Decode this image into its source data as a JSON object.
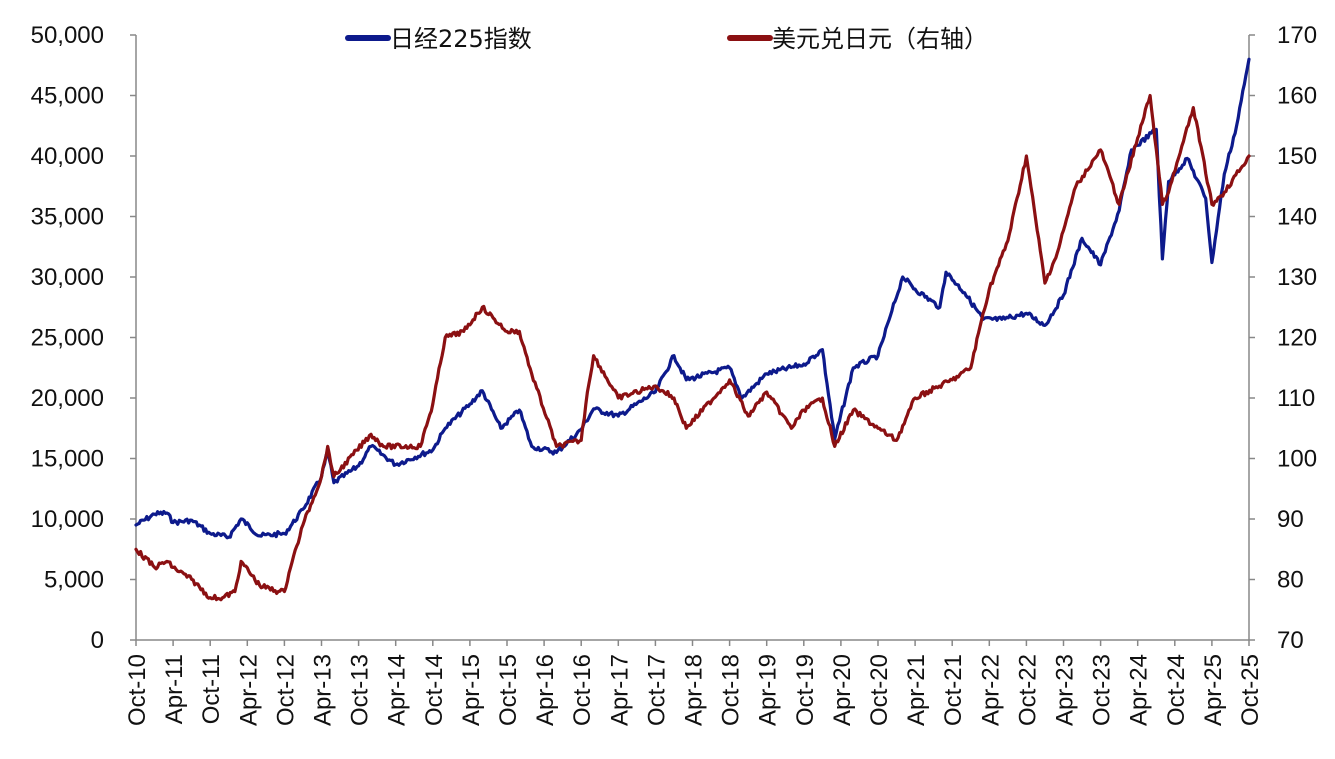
{
  "chart_data": {
    "type": "line",
    "title": "",
    "xlabel": "",
    "ylabel": "",
    "y2label": "",
    "grid": false,
    "legend_position": "top",
    "x_tick_labels": [
      "Oct-10",
      "Apr-11",
      "Oct-11",
      "Apr-12",
      "Oct-12",
      "Apr-13",
      "Oct-13",
      "Apr-14",
      "Oct-14",
      "Apr-15",
      "Oct-15",
      "Apr-16",
      "Oct-16",
      "Apr-17",
      "Oct-17",
      "Apr-18",
      "Oct-18",
      "Apr-19",
      "Oct-19",
      "Apr-20",
      "Oct-20",
      "Apr-21",
      "Oct-21",
      "Apr-22",
      "Oct-22",
      "Apr-23",
      "Oct-23",
      "Apr-24",
      "Oct-24",
      "Apr-25",
      "Oct-25"
    ],
    "left_axis": {
      "ylim": [
        0,
        50000
      ],
      "tick_labels": [
        "0",
        "5,000",
        "10,000",
        "15,000",
        "20,000",
        "25,000",
        "30,000",
        "35,000",
        "40,000",
        "45,000",
        "50,000"
      ]
    },
    "right_axis": {
      "ylim": [
        70,
        170
      ],
      "tick_labels": [
        "70",
        "80",
        "90",
        "100",
        "110",
        "120",
        "130",
        "140",
        "150",
        "160",
        "170"
      ]
    },
    "series": [
      {
        "name": "日经225指数",
        "axis": "left",
        "color": "#0d1a8c",
        "x": [
          "Oct-10",
          "Jan-11",
          "Mar-11",
          "Apr-11",
          "Jul-11",
          "Oct-11",
          "Jan-12",
          "Mar-12",
          "Jun-12",
          "Oct-12",
          "Nov-12",
          "Jan-13",
          "Apr-13",
          "May-13",
          "Jun-13",
          "Oct-13",
          "Dec-13",
          "Apr-14",
          "Oct-14",
          "Dec-14",
          "Apr-15",
          "Jun-15",
          "Sep-15",
          "Dec-15",
          "Feb-16",
          "Jun-16",
          "Oct-16",
          "Dec-16",
          "Apr-17",
          "Oct-17",
          "Jan-18",
          "Mar-18",
          "Oct-18",
          "Dec-18",
          "Apr-19",
          "Oct-19",
          "Jan-20",
          "Mar-20",
          "Jun-20",
          "Oct-20",
          "Dec-20",
          "Feb-21",
          "Apr-21",
          "Aug-21",
          "Sep-21",
          "Dec-21",
          "Mar-22",
          "Jun-22",
          "Oct-22",
          "Jan-23",
          "Apr-23",
          "Jul-23",
          "Oct-23",
          "Jan-24",
          "Mar-24",
          "Jul-24",
          "Aug-24",
          "Sep-24",
          "Dec-24",
          "Mar-25",
          "Apr-25",
          "Jun-25",
          "Aug-25",
          "Oct-25"
        ],
        "y": [
          9500,
          10400,
          10500,
          9700,
          9900,
          8800,
          8500,
          10000,
          8600,
          8800,
          9400,
          10800,
          13500,
          15600,
          13000,
          14400,
          16000,
          14500,
          15700,
          17500,
          19500,
          20600,
          17500,
          19000,
          16000,
          15500,
          17400,
          19100,
          18500,
          20500,
          23500,
          21500,
          22500,
          20000,
          22000,
          22800,
          24000,
          16600,
          22500,
          23500,
          26800,
          30000,
          29000,
          27500,
          30400,
          28700,
          26500,
          26500,
          27000,
          26000,
          28500,
          33200,
          31000,
          35500,
          40500,
          42200,
          31500,
          37900,
          39800,
          36500,
          31200,
          38500,
          42500,
          48000
        ]
      },
      {
        "name": "美元兑日元（右轴）",
        "axis": "right",
        "color": "#8b1012",
        "x": [
          "Oct-10",
          "Jan-11",
          "Mar-11",
          "Apr-11",
          "Jul-11",
          "Oct-11",
          "Dec-11",
          "Feb-12",
          "Mar-12",
          "Jun-12",
          "Sep-12",
          "Oct-12",
          "Nov-12",
          "Jan-13",
          "Apr-13",
          "May-13",
          "Jun-13",
          "Dec-13",
          "Feb-14",
          "Aug-14",
          "Oct-14",
          "Dec-14",
          "Mar-15",
          "Jun-15",
          "Aug-15",
          "Oct-15",
          "Dec-15",
          "Feb-16",
          "Jun-16",
          "Oct-16",
          "Nov-16",
          "Dec-16",
          "Apr-17",
          "Oct-17",
          "Jan-18",
          "Mar-18",
          "Oct-18",
          "Jan-19",
          "Apr-19",
          "Aug-19",
          "Oct-19",
          "Jan-20",
          "Mar-20",
          "Jun-20",
          "Oct-20",
          "Jan-21",
          "Apr-21",
          "Oct-21",
          "Jan-22",
          "Mar-22",
          "Apr-22",
          "Jul-22",
          "Oct-22",
          "Jan-23",
          "Mar-23",
          "Jun-23",
          "Oct-23",
          "Jan-24",
          "Apr-24",
          "Jun-24",
          "Aug-24",
          "Sep-24",
          "Jan-25",
          "Apr-25",
          "Jun-25",
          "Oct-25"
        ],
        "y": [
          85,
          82,
          83,
          82,
          80,
          77,
          77,
          78,
          83,
          79,
          78,
          78,
          82,
          89,
          97,
          102,
          97,
          104,
          102,
          102,
          109,
          120,
          121,
          125,
          123,
          121,
          121,
          114,
          102,
          103,
          111,
          117,
          110,
          112,
          110,
          105,
          113,
          107,
          111,
          105,
          108,
          110,
          102,
          108,
          105,
          103,
          110,
          113,
          115,
          124,
          128,
          136,
          150,
          129,
          134,
          145,
          151,
          142,
          153,
          160,
          142,
          144,
          158,
          142,
          144,
          150
        ]
      }
    ]
  }
}
